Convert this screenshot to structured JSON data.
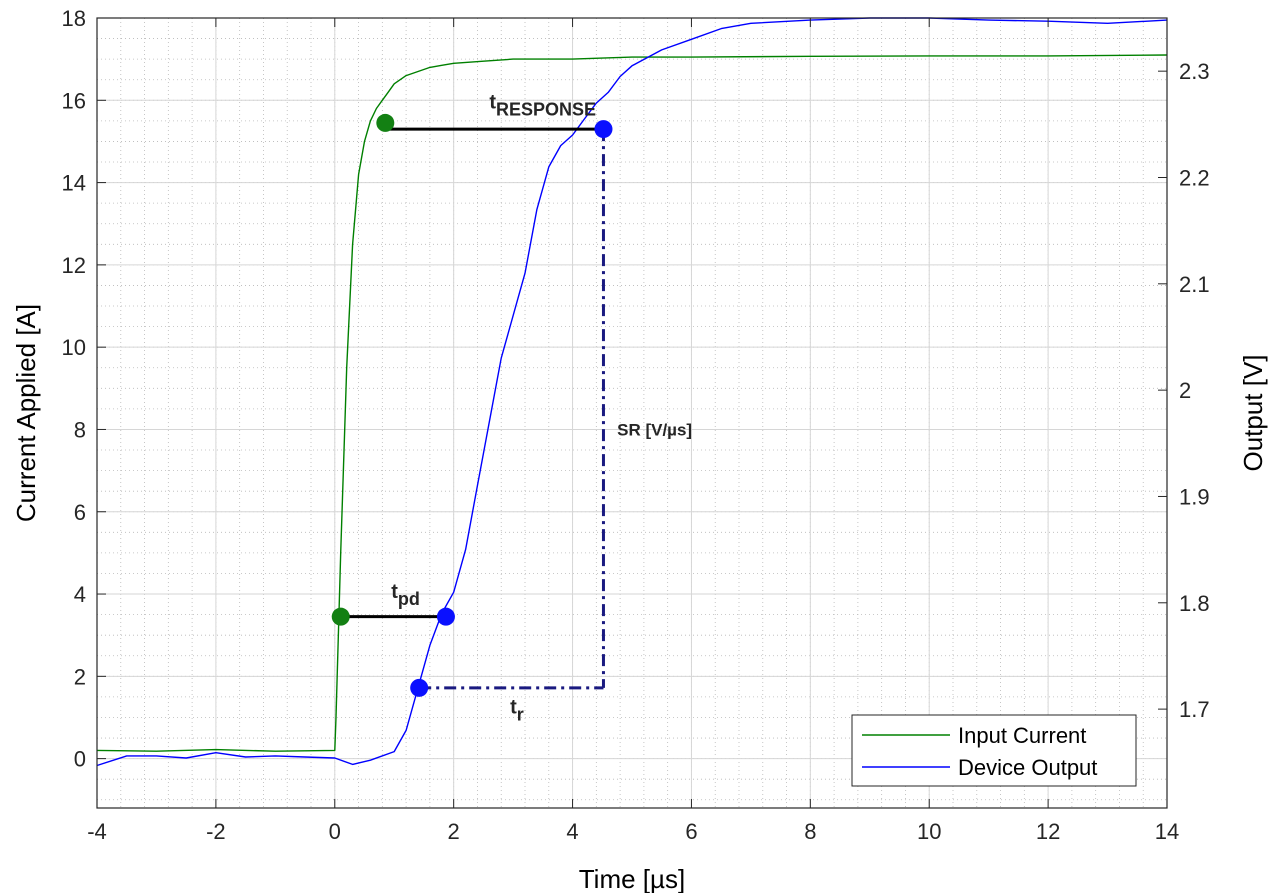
{
  "chart_data": {
    "type": "line",
    "xlabel": "Time [µs]",
    "ylabel_left": "Current Applied [A]",
    "ylabel_right": "Output [V]",
    "xlim": [
      -4,
      14
    ],
    "ylim_left": [
      -1.2,
      18
    ],
    "ylim_right": [
      1.607,
      2.35
    ],
    "x_ticks": [
      "-4",
      "-2",
      "0",
      "2",
      "4",
      "6",
      "8",
      "10",
      "12",
      "14"
    ],
    "y_left_ticks": [
      "0",
      "2",
      "4",
      "6",
      "8",
      "10",
      "12",
      "14",
      "16",
      "18"
    ],
    "y_right_ticks": [
      "1.7",
      "1.8",
      "1.9",
      "2",
      "2.1",
      "2.2",
      "2.3"
    ],
    "grid": true,
    "minor_grid": true,
    "legend": {
      "placement": "bottom-right",
      "entries": [
        "Input Current",
        "Device Output"
      ]
    },
    "colors": {
      "input": "#008000",
      "output": "#0000ff",
      "annotation": "#000000",
      "sr_line": "#1a1a80"
    },
    "series": [
      {
        "name": "Input Current",
        "axis": "left",
        "x": [
          -4,
          -3,
          -2,
          -1,
          0,
          0.02,
          0.1,
          0.2,
          0.3,
          0.4,
          0.5,
          0.6,
          0.7,
          0.8,
          0.9,
          1.0,
          1.2,
          1.4,
          1.6,
          1.8,
          2.0,
          2.5,
          3.0,
          4.0,
          5.0,
          6.0,
          8.0,
          10.0,
          12.0,
          14.0
        ],
        "y": [
          0.2,
          0.18,
          0.22,
          0.18,
          0.2,
          1.0,
          5.0,
          9.5,
          12.5,
          14.2,
          15.0,
          15.5,
          15.8,
          16.0,
          16.2,
          16.4,
          16.6,
          16.7,
          16.8,
          16.85,
          16.9,
          16.95,
          17.0,
          17.0,
          17.05,
          17.05,
          17.07,
          17.08,
          17.08,
          17.1
        ]
      },
      {
        "name": "Device Output",
        "axis": "right",
        "x": [
          -4,
          -3.5,
          -3,
          -2.5,
          -2,
          -1.5,
          -1,
          -0.5,
          0,
          0.3,
          0.6,
          1.0,
          1.2,
          1.4,
          1.6,
          1.8,
          2.0,
          2.2,
          2.4,
          2.6,
          2.8,
          3.0,
          3.2,
          3.4,
          3.6,
          3.8,
          4.0,
          4.2,
          4.4,
          4.6,
          4.8,
          5.0,
          5.5,
          6.0,
          6.5,
          7.0,
          8.0,
          9.0,
          10.0,
          11.0,
          12.0,
          13.0,
          14.0
        ],
        "y": [
          1.647,
          1.656,
          1.656,
          1.654,
          1.659,
          1.655,
          1.656,
          1.655,
          1.654,
          1.648,
          1.652,
          1.66,
          1.68,
          1.72,
          1.76,
          1.79,
          1.81,
          1.85,
          1.91,
          1.97,
          2.03,
          2.07,
          2.11,
          2.17,
          2.21,
          2.23,
          2.24,
          2.255,
          2.27,
          2.28,
          2.295,
          2.305,
          2.32,
          2.33,
          2.34,
          2.345,
          2.348,
          2.35,
          2.35,
          2.348,
          2.347,
          2.345,
          2.348
        ]
      }
    ],
    "markers": [
      {
        "label": "input-10pct-marker",
        "x": 0.1,
        "y_left": 3.45,
        "color": "green"
      },
      {
        "label": "input-90pct-marker",
        "x": 0.85,
        "y_left": 15.45,
        "color": "green"
      },
      {
        "label": "output-10pct-marker",
        "x": 1.87,
        "y_left": 3.45,
        "color": "blue"
      },
      {
        "label": "output-90pct-marker",
        "x": 4.52,
        "y_left": 15.3,
        "color": "blue"
      },
      {
        "label": "output-rise-start-marker",
        "x": 1.42,
        "y_left": 1.72,
        "color": "blue"
      }
    ],
    "annotations": {
      "t_response": {
        "main": "t",
        "sub": "RESPONSE",
        "x": 2.6,
        "y_left": 15.8
      },
      "t_pd": {
        "main": "t",
        "sub": "pd",
        "x": 0.95,
        "y_left": 3.9
      },
      "t_r": {
        "main": "t",
        "sub": "r",
        "x": 2.95,
        "y_left": 1.1
      },
      "sr": {
        "text": "SR [V/µs]",
        "x": 4.75,
        "y_left": 7.85
      }
    }
  }
}
